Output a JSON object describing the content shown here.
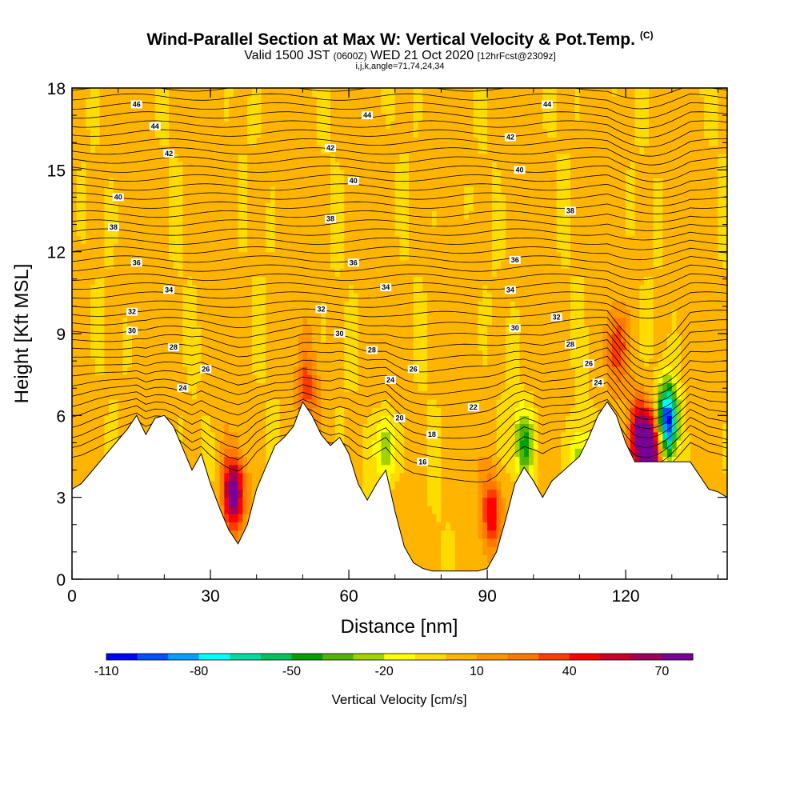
{
  "header": {
    "title": "Wind-Parallel Section at Max W: Vertical Velocity & Pot.Temp.",
    "title_mark": "(C)",
    "subtitle_main": "Valid 1500 JST",
    "subtitle_utc": "(0600Z)",
    "subtitle_date": "WED 21 Oct 2020",
    "subtitle_fcst": "[12hrFcst@2309z]",
    "subtitle2": "i,j,k,angle=71,74,24,34"
  },
  "chart_data": {
    "type": "heatmap",
    "title": "Wind-Parallel Section at Max W: Vertical Velocity & Pot.Temp.",
    "xlabel": "Distance [nm]",
    "ylabel": "Height [Kft MSL]",
    "xlim": [
      0,
      142
    ],
    "ylim": [
      0,
      18
    ],
    "x_ticks": [
      0,
      30,
      60,
      90,
      120
    ],
    "y_ticks": [
      0,
      3,
      6,
      9,
      12,
      15,
      18
    ],
    "grid": false,
    "fill_variable": "Vertical Velocity",
    "contour_variable": "Pot.Temp.",
    "colorbar": {
      "title": "Vertical Velocity [cm/s]",
      "tick_labels": [
        "-110",
        "-80",
        "-50",
        "-20",
        "10",
        "40",
        "70"
      ],
      "tick_values": [
        -110,
        -80,
        -50,
        -20,
        10,
        40,
        70
      ],
      "levels": [
        -110,
        -100,
        -90,
        -80,
        -70,
        -60,
        -50,
        -40,
        -30,
        -20,
        -10,
        0,
        10,
        20,
        30,
        40,
        50,
        60,
        70,
        80
      ],
      "colors": [
        "#0000ff",
        "#0050ff",
        "#00a0ff",
        "#00ffff",
        "#00dca0",
        "#00c060",
        "#00a000",
        "#50b400",
        "#a0d200",
        "#ffff00",
        "#ffdc00",
        "#ffb400",
        "#ff9600",
        "#ff7800",
        "#ff3c00",
        "#ff0000",
        "#c80028",
        "#a0005a",
        "#780096"
      ]
    },
    "terrain": {
      "x": [
        0,
        2,
        4,
        6,
        8,
        10,
        12,
        14,
        16,
        18,
        20,
        22,
        24,
        26,
        28,
        30,
        32,
        34,
        36,
        38,
        40,
        42,
        44,
        46,
        48,
        50,
        52,
        54,
        56,
        58,
        60,
        62,
        64,
        66,
        68,
        70,
        72,
        74,
        76,
        78,
        80,
        82,
        84,
        86,
        88,
        90,
        92,
        94,
        96,
        98,
        100,
        102,
        104,
        106,
        108,
        110,
        112,
        114,
        116,
        118,
        120,
        122,
        124,
        126,
        128,
        130,
        132,
        134,
        136,
        138,
        140,
        142
      ],
      "height_kft": [
        3.3,
        3.5,
        3.9,
        4.3,
        4.7,
        5.1,
        5.5,
        6.0,
        5.3,
        5.9,
        6.0,
        5.6,
        4.8,
        4.0,
        4.6,
        3.5,
        2.6,
        1.8,
        1.3,
        2.0,
        3.3,
        4.1,
        4.9,
        5.2,
        5.6,
        6.5,
        6.0,
        5.3,
        4.9,
        5.2,
        4.6,
        3.5,
        2.9,
        3.5,
        4.0,
        2.5,
        1.2,
        0.6,
        0.4,
        0.3,
        0.3,
        0.3,
        0.3,
        0.3,
        0.3,
        0.4,
        1.0,
        2.2,
        3.5,
        4.1,
        3.6,
        3.0,
        3.6,
        3.9,
        4.2,
        4.5,
        5.2,
        6.0,
        6.5,
        6.0,
        5.0,
        4.3,
        4.3,
        4.3,
        4.3,
        4.3,
        4.3,
        4.3,
        3.8,
        3.3,
        3.2,
        3.0
      ]
    },
    "features": [
      {
        "x": 35,
        "y_kft": 3.2,
        "w": 75,
        "label": "updraft"
      },
      {
        "x": 91,
        "y_kft": 2.5,
        "w": 45,
        "label": "updraft"
      },
      {
        "x": 123,
        "y_kft": 5.2,
        "w": 70,
        "label": "updraft"
      },
      {
        "x": 126,
        "y_kft": 4.8,
        "w": 80,
        "label": "updraft"
      },
      {
        "x": 129,
        "y_kft": 5.8,
        "w": -110,
        "label": "downdraft"
      },
      {
        "x": 98,
        "y_kft": 5.0,
        "w": -45,
        "label": "downdraft"
      },
      {
        "x": 68,
        "y_kft": 4.8,
        "w": -40,
        "label": "downdraft"
      },
      {
        "x": 110,
        "y_kft": 4.3,
        "w": -30,
        "label": "downdraft"
      },
      {
        "x": 51,
        "y_kft": 7.0,
        "w": 30,
        "label": "updraft"
      },
      {
        "x": 118,
        "y_kft": 8.5,
        "w": 35,
        "label": "updraft"
      }
    ],
    "contour_labels": [
      {
        "x": 14,
        "y_kft": 17.4,
        "value": "46"
      },
      {
        "x": 18,
        "y_kft": 16.6,
        "value": "44"
      },
      {
        "x": 21,
        "y_kft": 15.6,
        "value": "42"
      },
      {
        "x": 10,
        "y_kft": 14.0,
        "value": "40"
      },
      {
        "x": 9,
        "y_kft": 12.9,
        "value": "38"
      },
      {
        "x": 14,
        "y_kft": 11.6,
        "value": "36"
      },
      {
        "x": 21,
        "y_kft": 10.6,
        "value": "34"
      },
      {
        "x": 13,
        "y_kft": 9.8,
        "value": "32"
      },
      {
        "x": 13,
        "y_kft": 9.1,
        "value": "30"
      },
      {
        "x": 22,
        "y_kft": 8.5,
        "value": "28"
      },
      {
        "x": 29,
        "y_kft": 7.7,
        "value": "26"
      },
      {
        "x": 24,
        "y_kft": 7.0,
        "value": "24"
      },
      {
        "x": 64,
        "y_kft": 17.0,
        "value": "44"
      },
      {
        "x": 56,
        "y_kft": 15.8,
        "value": "42"
      },
      {
        "x": 61,
        "y_kft": 14.6,
        "value": "40"
      },
      {
        "x": 56,
        "y_kft": 13.2,
        "value": "38"
      },
      {
        "x": 61,
        "y_kft": 11.6,
        "value": "36"
      },
      {
        "x": 68,
        "y_kft": 10.7,
        "value": "34"
      },
      {
        "x": 54,
        "y_kft": 9.9,
        "value": "32"
      },
      {
        "x": 58,
        "y_kft": 9.0,
        "value": "30"
      },
      {
        "x": 65,
        "y_kft": 8.4,
        "value": "28"
      },
      {
        "x": 74,
        "y_kft": 7.7,
        "value": "26"
      },
      {
        "x": 69,
        "y_kft": 7.3,
        "value": "24"
      },
      {
        "x": 87,
        "y_kft": 6.3,
        "value": "22"
      },
      {
        "x": 71,
        "y_kft": 5.9,
        "value": "20"
      },
      {
        "x": 78,
        "y_kft": 5.3,
        "value": "18"
      },
      {
        "x": 76,
        "y_kft": 4.3,
        "value": "16"
      },
      {
        "x": 103,
        "y_kft": 17.4,
        "value": "44"
      },
      {
        "x": 95,
        "y_kft": 16.2,
        "value": "42"
      },
      {
        "x": 97,
        "y_kft": 15.0,
        "value": "40"
      },
      {
        "x": 108,
        "y_kft": 13.5,
        "value": "38"
      },
      {
        "x": 96,
        "y_kft": 11.7,
        "value": "36"
      },
      {
        "x": 95,
        "y_kft": 10.6,
        "value": "34"
      },
      {
        "x": 105,
        "y_kft": 9.6,
        "value": "32"
      },
      {
        "x": 96,
        "y_kft": 9.2,
        "value": "30"
      },
      {
        "x": 108,
        "y_kft": 8.6,
        "value": "28"
      },
      {
        "x": 112,
        "y_kft": 7.9,
        "value": "26"
      },
      {
        "x": 114,
        "y_kft": 7.2,
        "value": "24"
      }
    ]
  }
}
